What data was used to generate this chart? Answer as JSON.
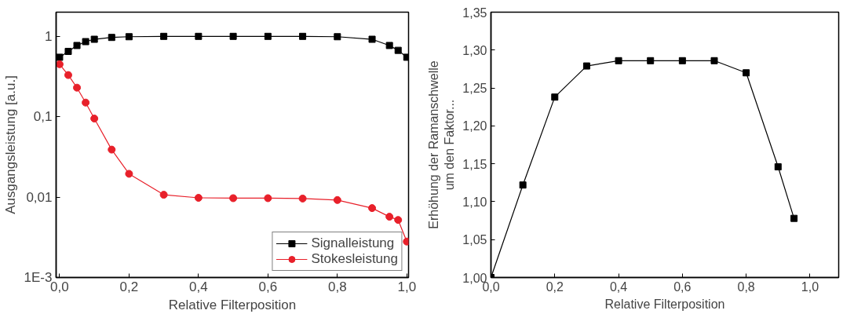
{
  "chart_data": [
    {
      "type": "line",
      "xlabel": "Relative Filterposition",
      "ylabel": "Ausgangsleistung [a.u.]",
      "log": "y",
      "legend": "bottom right",
      "grid": false,
      "xlim": [
        -0.01,
        1.005
      ],
      "xticks": [
        {
          "value": 0,
          "label": "0,0"
        },
        {
          "value": 0.2,
          "label": "0,2"
        },
        {
          "value": 0.4,
          "label": "0,4"
        },
        {
          "value": 0.6,
          "label": "0,6"
        },
        {
          "value": 0.8,
          "label": "0,8"
        },
        {
          "value": 1.0,
          "label": "1,0"
        }
      ],
      "ylim": [
        0.001,
        2
      ],
      "yticks": [
        {
          "value": 0.001,
          "label": "1E-3"
        },
        {
          "value": 0.01,
          "label": "0,01"
        },
        {
          "value": 0.1,
          "label": "0,1"
        },
        1
      ],
      "x": [
        0,
        0.025,
        0.05,
        0.075,
        0.1,
        0.15,
        0.2,
        0.3,
        0.4,
        0.5,
        0.6,
        0.7,
        0.8,
        0.9,
        0.95,
        0.975,
        1.0
      ],
      "series": [
        {
          "name": "Signalleistung",
          "color": "#000000",
          "marker": "square",
          "values": [
            0.55,
            0.65,
            0.77,
            0.86,
            0.92,
            0.97,
            0.99,
            1.0,
            1.0,
            1.0,
            1.0,
            1.0,
            0.99,
            0.92,
            0.77,
            0.67,
            0.55
          ]
        },
        {
          "name": "Stokesleistung",
          "color": "#e8202a",
          "marker": "circle",
          "values": [
            0.45,
            0.33,
            0.23,
            0.15,
            0.095,
            0.039,
            0.0195,
            0.0107,
            0.0098,
            0.0097,
            0.0097,
            0.0096,
            0.0092,
            0.0073,
            0.0057,
            0.0052,
            0.0028
          ]
        }
      ]
    },
    {
      "type": "line",
      "xlabel": "Relative Filterposition",
      "ylabel": "Erhöhung der Ramanschwelle\num den Faktor...",
      "grid": false,
      "marker": "square",
      "xlim": [
        0,
        1.09
      ],
      "xticks": [
        {
          "value": 0,
          "label": "0,0"
        },
        {
          "value": 0.2,
          "label": "0,2"
        },
        {
          "value": 0.4,
          "label": "0,4"
        },
        {
          "value": 0.6,
          "label": "0,6"
        },
        {
          "value": 0.8,
          "label": "0,8"
        },
        {
          "value": 1.0,
          "label": "1,0"
        }
      ],
      "ylim": [
        1.0,
        1.35
      ],
      "yticks": [
        {
          "value": 1.0,
          "label": "1,00"
        },
        {
          "value": 1.05,
          "label": "1,05"
        },
        {
          "value": 1.1,
          "label": "1,10"
        },
        {
          "value": 1.15,
          "label": "1,15"
        },
        {
          "value": 1.2,
          "label": "1,20"
        },
        {
          "value": 1.25,
          "label": "1,25"
        },
        {
          "value": 1.3,
          "label": "1,30"
        },
        {
          "value": 1.35,
          "label": "1,35"
        }
      ],
      "x": [
        0,
        0.1,
        0.2,
        0.3,
        0.4,
        0.5,
        0.6,
        0.7,
        0.8,
        0.9,
        0.95
      ],
      "series": [
        {
          "color": "#000000",
          "values": [
            1.0,
            1.122,
            1.238,
            1.279,
            1.286,
            1.286,
            1.286,
            1.286,
            1.27,
            1.146,
            1.078
          ]
        }
      ]
    }
  ]
}
